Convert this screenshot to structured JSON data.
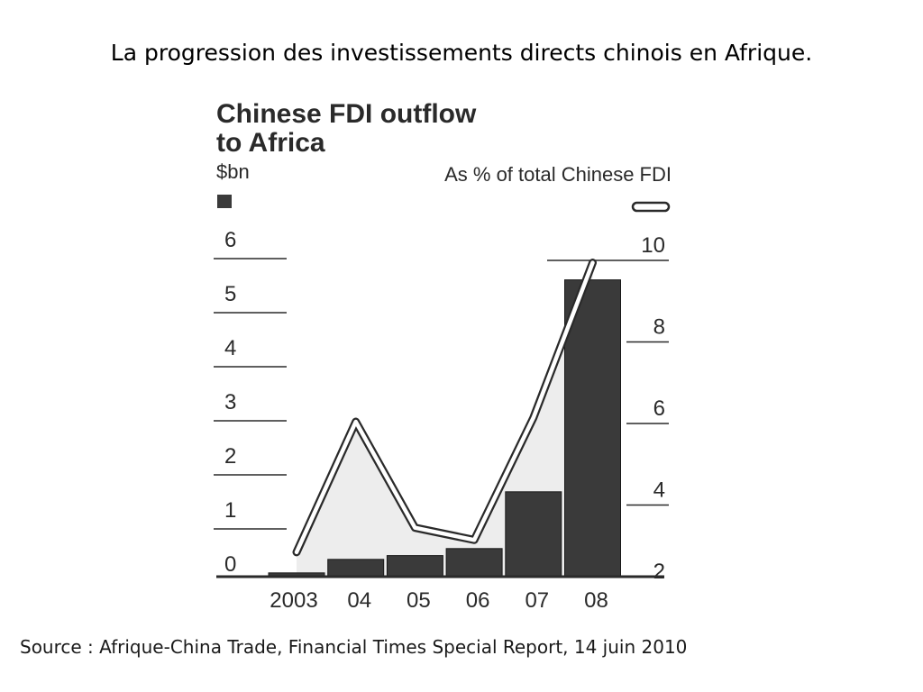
{
  "slide": {
    "title": "La progression des investissements directs chinois en Afrique.",
    "source": "Source : Afrique-China Trade, Financial Times Special Report, 14 juin 2010"
  },
  "chart_data": {
    "type": "bar",
    "title": [
      "Chinese FDI outflow",
      "to Africa"
    ],
    "categories": [
      "2003",
      "04",
      "05",
      "06",
      "07",
      "08"
    ],
    "left_axis": {
      "unit": "$bn",
      "ticks": [
        "0",
        "1",
        "2",
        "3",
        "4",
        "5",
        "6"
      ],
      "range": [
        0,
        6
      ]
    },
    "right_axis": {
      "unit": "As % of total Chinese FDI",
      "ticks": [
        "2",
        "4",
        "6",
        "8",
        "10"
      ],
      "range": [
        2,
        10
      ]
    },
    "series": [
      {
        "type": "bar",
        "axis": "left",
        "values": [
          0.07,
          0.32,
          0.39,
          0.52,
          1.57,
          5.49
        ],
        "color": "#3a3a3a"
      },
      {
        "type": "line",
        "axis": "right",
        "values": [
          2.6,
          5.8,
          3.2,
          2.9,
          5.9,
          9.7
        ],
        "color": "#ffffff"
      }
    ],
    "colors": {
      "ink": "#2a2a2a",
      "bar": "#3a3a3a",
      "area": "#ededed"
    }
  }
}
